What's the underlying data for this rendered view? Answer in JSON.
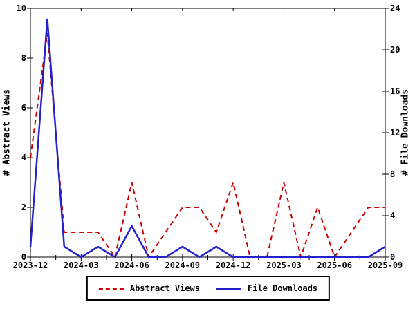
{
  "chart_data": {
    "type": "line",
    "x_unit": "month",
    "x_range": [
      "2023-12",
      "2025-09"
    ],
    "months_count": 22,
    "x_tick_labels": [
      "2023-12",
      "2024-03",
      "2024-06",
      "2024-09",
      "2024-12",
      "2025-03",
      "2025-06",
      "2025-09"
    ],
    "x_tick_indices": [
      0,
      3,
      6,
      9,
      12,
      15,
      18,
      21
    ],
    "left_axis": {
      "label": "# Abstract Views",
      "min": 0,
      "max": 10,
      "ticks": [
        0,
        2,
        4,
        6,
        8,
        10
      ]
    },
    "right_axis": {
      "label": "# File Downloads",
      "min": 0,
      "max": 24,
      "ticks": [
        0,
        4,
        8,
        12,
        16,
        20,
        24
      ]
    },
    "grid": false,
    "legend_position": "bottom-center",
    "series": [
      {
        "name": "Abstract Views",
        "axis": "left",
        "style": "dashed",
        "color": "#cc0000",
        "values": [
          4,
          9,
          1,
          1,
          1,
          0,
          3,
          0,
          1,
          2,
          2,
          1,
          3,
          0,
          0,
          3,
          0,
          2,
          0,
          1,
          2,
          2
        ]
      },
      {
        "name": "File Downloads",
        "axis": "right",
        "style": "solid",
        "color": "#2222cc",
        "values": [
          1,
          23,
          1,
          0,
          1,
          0,
          3,
          0,
          0,
          1,
          0,
          1,
          0,
          0,
          0,
          0,
          0,
          0,
          0,
          0,
          0,
          1
        ]
      }
    ],
    "colors": {
      "axis": "#000000",
      "background": "#ffffff"
    }
  },
  "legend": {
    "abstract_views_label": "Abstract Views",
    "file_downloads_label": "File Downloads"
  },
  "axis_titles": {
    "left": "# Abstract Views",
    "right": "# File Downloads"
  }
}
